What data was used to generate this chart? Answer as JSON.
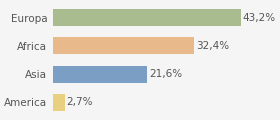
{
  "categories": [
    "America",
    "Asia",
    "Africa",
    "Europa"
  ],
  "values": [
    2.7,
    21.6,
    32.4,
    43.2
  ],
  "labels": [
    "2,7%",
    "21,6%",
    "32,4%",
    "43,2%"
  ],
  "bar_colors": [
    "#e8d080",
    "#7b9ec4",
    "#e8b98a",
    "#a8bc8f"
  ],
  "background_color": "#f5f5f5",
  "xlim": [
    0,
    50
  ],
  "label_fontsize": 7.5,
  "category_fontsize": 7.5,
  "text_color": "#555555"
}
